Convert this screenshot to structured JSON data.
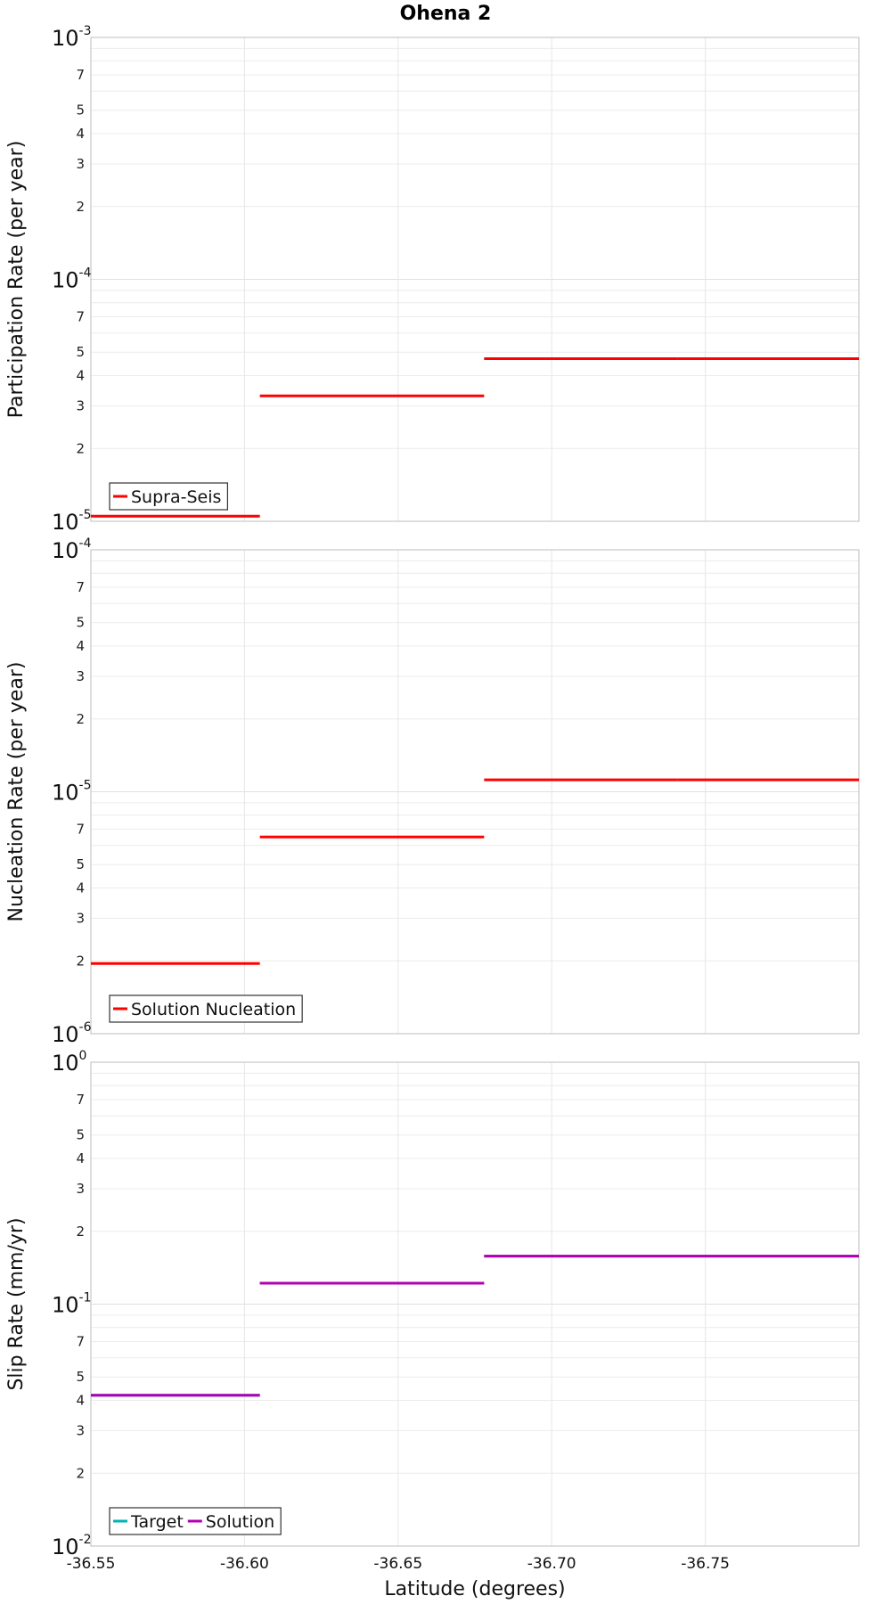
{
  "chart_data": {
    "type": "line",
    "title": "Ohena 2",
    "xlabel": "Latitude (degrees)",
    "xlim": [
      -36.55,
      -36.8
    ],
    "xticks": [
      "-36.55",
      "-36.60",
      "-36.65",
      "-36.70",
      "-36.75"
    ],
    "xtick_values": [
      -36.55,
      -36.6,
      -36.65,
      -36.7,
      -36.75
    ],
    "series_segments_x": [
      [
        -36.55,
        -36.605
      ],
      [
        -36.605,
        -36.678
      ],
      [
        -36.678,
        -36.741
      ],
      [
        -36.741,
        -36.8
      ]
    ],
    "panels": [
      {
        "ylabel": "Participation Rate (per year)",
        "yscale": "log",
        "ylim": [
          1e-05,
          0.001
        ],
        "decade_labels": [
          {
            "base": "10",
            "exp": "-5"
          },
          {
            "base": "10",
            "exp": "-4"
          },
          {
            "base": "10",
            "exp": "-3"
          }
        ],
        "minor_labels": [
          "2",
          "3",
          "4",
          "5",
          "7"
        ],
        "legend": [
          {
            "label": "Supra-Seis",
            "color": "#ff0000"
          }
        ],
        "series": [
          {
            "name": "Supra-Seis",
            "color": "#ff0000",
            "values": [
              1.05e-05,
              3.3e-05,
              4.7e-05,
              4.7e-05
            ]
          }
        ]
      },
      {
        "ylabel": "Nucleation Rate (per year)",
        "yscale": "log",
        "ylim": [
          1e-06,
          0.0001
        ],
        "decade_labels": [
          {
            "base": "10",
            "exp": "-6"
          },
          {
            "base": "10",
            "exp": "-5"
          },
          {
            "base": "10",
            "exp": "-4"
          }
        ],
        "minor_labels": [
          "2",
          "3",
          "4",
          "5",
          "7"
        ],
        "legend": [
          {
            "label": "Solution Nucleation",
            "color": "#ff0000"
          }
        ],
        "series": [
          {
            "name": "Solution Nucleation",
            "color": "#ff0000",
            "values": [
              1.95e-06,
              6.5e-06,
              1.12e-05,
              1.12e-05
            ]
          }
        ]
      },
      {
        "ylabel": "Slip Rate (mm/yr)",
        "yscale": "log",
        "ylim": [
          0.01,
          1
        ],
        "decade_labels": [
          {
            "base": "10",
            "exp": "-2"
          },
          {
            "base": "10",
            "exp": "-1"
          },
          {
            "base": "10",
            "exp": "0"
          }
        ],
        "minor_labels": [
          "2",
          "3",
          "4",
          "5",
          "7"
        ],
        "legend": [
          {
            "label": "Target",
            "color": "#00b3b3"
          },
          {
            "label": "Solution",
            "color": "#b300b3"
          }
        ],
        "series": [
          {
            "name": "Target",
            "color": "#00b3b3",
            "values": [
              0.042,
              0.122,
              0.158,
              0.158
            ]
          },
          {
            "name": "Solution",
            "color": "#b300b3",
            "values": [
              0.042,
              0.122,
              0.158,
              0.158
            ]
          }
        ]
      }
    ]
  }
}
